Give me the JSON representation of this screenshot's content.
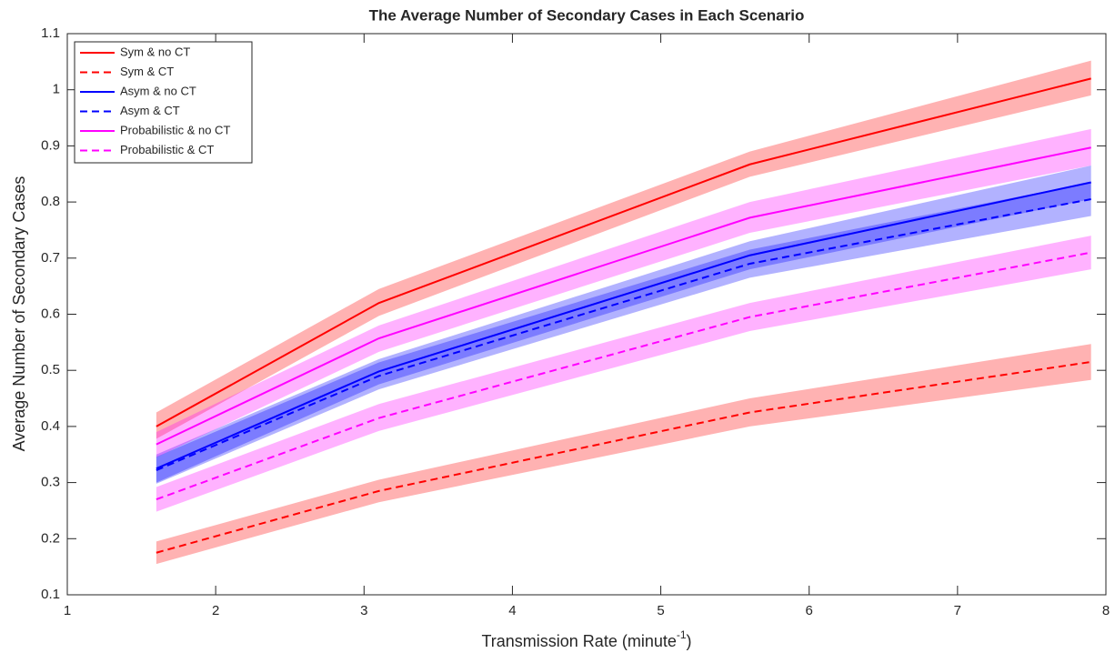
{
  "chart_data": {
    "type": "line",
    "title": "The Average Number of Secondary Cases in Each Scenario",
    "xlabel": [
      "Transmission Rate (minute",
      "-1",
      ")"
    ],
    "ylabel": "Average Number of Secondary Cases",
    "x": [
      1.6,
      3.1,
      5.6,
      7.9
    ],
    "xlim": [
      1,
      8
    ],
    "xticks": [
      1,
      2,
      3,
      4,
      5,
      6,
      7,
      8
    ],
    "ylim": [
      0.1,
      1.1
    ],
    "yticks": [
      0.1,
      0.2,
      0.3,
      0.4,
      0.5,
      0.6,
      0.7,
      0.8,
      0.9,
      1,
      1.1
    ],
    "legend": "upper left",
    "series": [
      {
        "name": "Sym & no CT",
        "color": "#ff0000",
        "dashed": false,
        "values": [
          0.4,
          0.62,
          0.867,
          1.02
        ],
        "lower": [
          0.378,
          0.597,
          0.845,
          0.99
        ],
        "upper": [
          0.425,
          0.645,
          0.89,
          1.052
        ]
      },
      {
        "name": "Sym & CT",
        "color": "#ff0000",
        "dashed": true,
        "values": [
          0.175,
          0.285,
          0.425,
          0.515
        ],
        "lower": [
          0.155,
          0.265,
          0.4,
          0.483
        ],
        "upper": [
          0.195,
          0.305,
          0.45,
          0.547
        ]
      },
      {
        "name": "Asym & no CT",
        "color": "#0000ff",
        "dashed": false,
        "values": [
          0.325,
          0.498,
          0.705,
          0.835
        ],
        "lower": [
          0.3,
          0.475,
          0.68,
          0.805
        ],
        "upper": [
          0.35,
          0.52,
          0.73,
          0.865
        ]
      },
      {
        "name": "Asym & CT",
        "color": "#0000ff",
        "dashed": true,
        "values": [
          0.322,
          0.49,
          0.69,
          0.805
        ],
        "lower": [
          0.298,
          0.466,
          0.665,
          0.775
        ],
        "upper": [
          0.346,
          0.514,
          0.715,
          0.835
        ]
      },
      {
        "name": "Probabilistic & no CT",
        "color": "#ff00ff",
        "dashed": false,
        "values": [
          0.368,
          0.557,
          0.772,
          0.897
        ],
        "lower": [
          0.345,
          0.533,
          0.745,
          0.865
        ],
        "upper": [
          0.39,
          0.58,
          0.8,
          0.93
        ]
      },
      {
        "name": "Probabilistic & CT",
        "color": "#ff00ff",
        "dashed": true,
        "values": [
          0.27,
          0.415,
          0.595,
          0.71
        ],
        "lower": [
          0.248,
          0.392,
          0.57,
          0.68
        ],
        "upper": [
          0.292,
          0.44,
          0.62,
          0.74
        ]
      }
    ]
  }
}
